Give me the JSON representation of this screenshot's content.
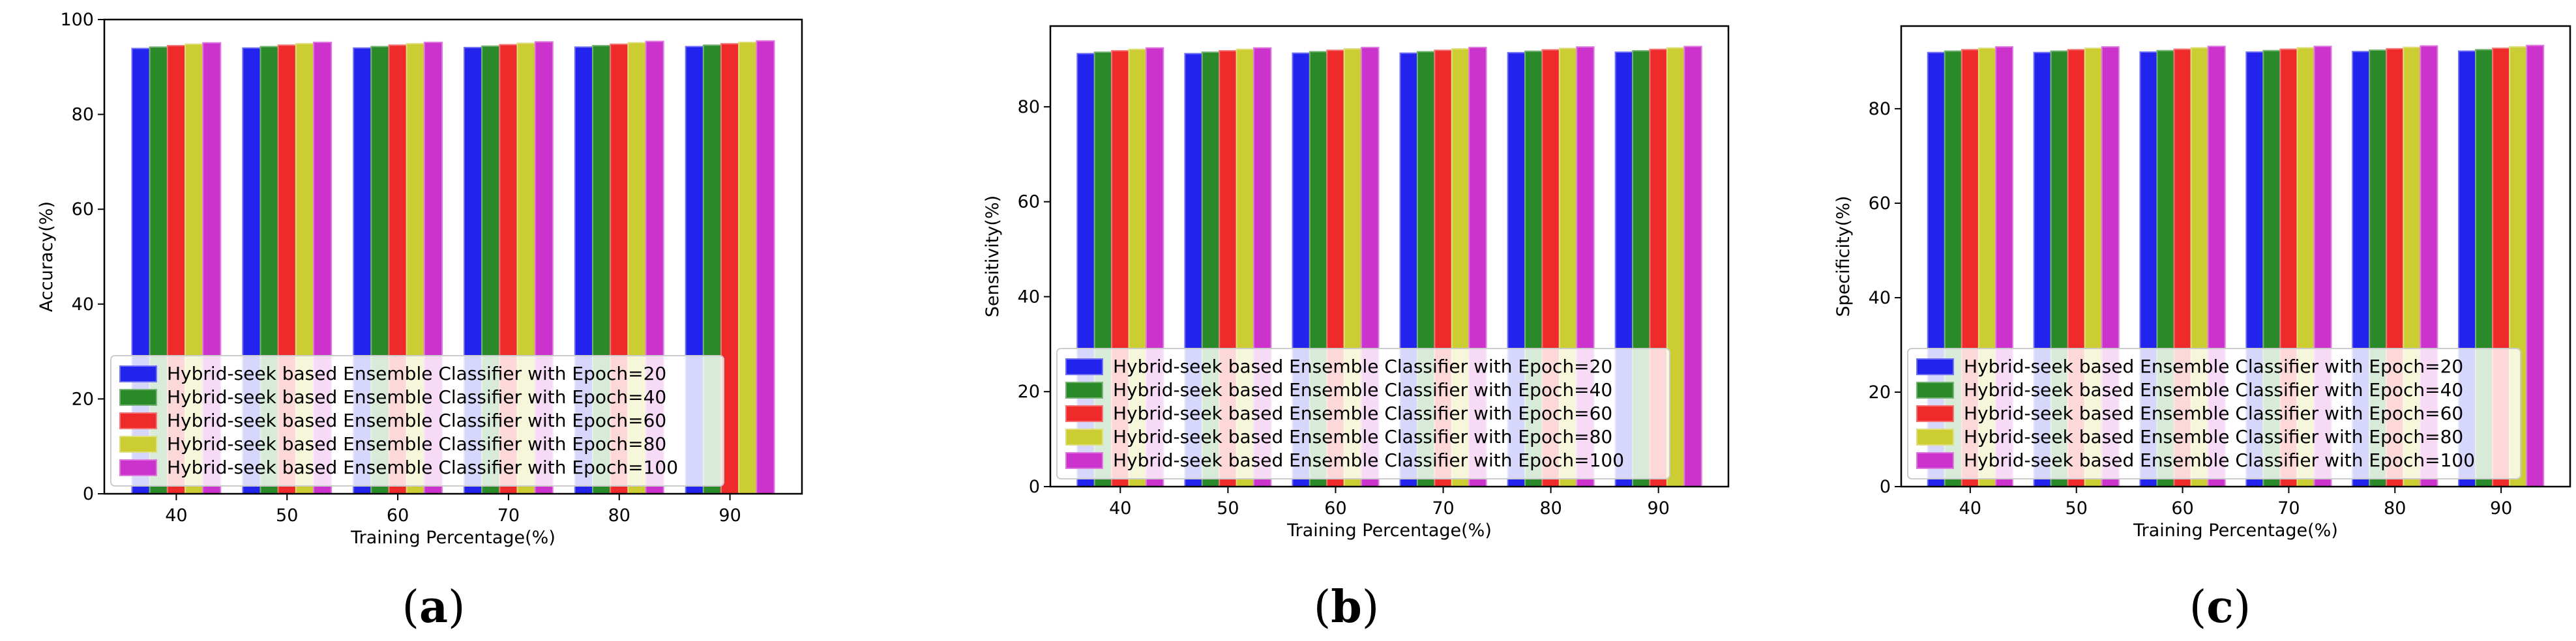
{
  "chart_data": [
    {
      "type": "bar",
      "panel_label": "(a)",
      "xlabel": "Training Percentage(%)",
      "ylabel": "Accuracy(%)",
      "ylim": [
        0,
        100
      ],
      "yticks": [
        0,
        20,
        40,
        60,
        80,
        100
      ],
      "categories": [
        "40",
        "50",
        "60",
        "70",
        "80",
        "90"
      ],
      "legend_position": "lower-left",
      "series": [
        {
          "name": "Hybrid-seek based Ensemble Classifier with Epoch=20",
          "color": "#2323ee",
          "values": [
            93.9,
            94.0,
            94.0,
            94.1,
            94.2,
            94.3
          ]
        },
        {
          "name": "Hybrid-seek based Ensemble Classifier with Epoch=40",
          "color": "#2a8a2a",
          "values": [
            94.2,
            94.3,
            94.3,
            94.4,
            94.5,
            94.6
          ]
        },
        {
          "name": "Hybrid-seek based Ensemble Classifier with Epoch=60",
          "color": "#ee2a2a",
          "values": [
            94.5,
            94.6,
            94.6,
            94.7,
            94.8,
            94.9
          ]
        },
        {
          "name": "Hybrid-seek based Ensemble Classifier with Epoch=80",
          "color": "#cccc33",
          "values": [
            94.8,
            94.9,
            94.9,
            95.0,
            95.1,
            95.2
          ]
        },
        {
          "name": "Hybrid-seek based Ensemble Classifier with Epoch=100",
          "color": "#cc33cc",
          "values": [
            95.1,
            95.2,
            95.2,
            95.3,
            95.4,
            95.5
          ]
        }
      ]
    },
    {
      "type": "bar",
      "panel_label": "(b)",
      "xlabel": "Training Percentage(%)",
      "ylabel": "Sensitivity(%)",
      "ylim": [
        0,
        97
      ],
      "yticks": [
        0,
        20,
        40,
        60,
        80
      ],
      "categories": [
        "40",
        "50",
        "60",
        "70",
        "80",
        "90"
      ],
      "legend_position": "lower-left",
      "series": [
        {
          "name": "Hybrid-seek based Ensemble Classifier with Epoch=20",
          "color": "#2323ee",
          "values": [
            91.2,
            91.2,
            91.3,
            91.3,
            91.4,
            91.5
          ]
        },
        {
          "name": "Hybrid-seek based Ensemble Classifier with Epoch=40",
          "color": "#2a8a2a",
          "values": [
            91.5,
            91.5,
            91.6,
            91.6,
            91.7,
            91.8
          ]
        },
        {
          "name": "Hybrid-seek based Ensemble Classifier with Epoch=60",
          "color": "#ee2a2a",
          "values": [
            91.8,
            91.8,
            91.9,
            91.9,
            92.0,
            92.1
          ]
        },
        {
          "name": "Hybrid-seek based Ensemble Classifier with Epoch=80",
          "color": "#cccc33",
          "values": [
            92.1,
            92.1,
            92.2,
            92.2,
            92.3,
            92.4
          ]
        },
        {
          "name": "Hybrid-seek based Ensemble Classifier with Epoch=100",
          "color": "#cc33cc",
          "values": [
            92.4,
            92.4,
            92.5,
            92.5,
            92.6,
            92.7
          ]
        }
      ]
    },
    {
      "type": "bar",
      "panel_label": "(c)",
      "xlabel": "Training Percentage(%)",
      "ylabel": "Specificity(%)",
      "ylim": [
        0,
        97.5
      ],
      "yticks": [
        0,
        20,
        40,
        60,
        80
      ],
      "categories": [
        "40",
        "50",
        "60",
        "70",
        "80",
        "90"
      ],
      "legend_position": "lower-left",
      "series": [
        {
          "name": "Hybrid-seek based Ensemble Classifier with Epoch=20",
          "color": "#2323ee",
          "values": [
            91.9,
            91.9,
            92.0,
            92.0,
            92.1,
            92.2
          ]
        },
        {
          "name": "Hybrid-seek based Ensemble Classifier with Epoch=40",
          "color": "#2a8a2a",
          "values": [
            92.2,
            92.2,
            92.3,
            92.3,
            92.4,
            92.5
          ]
        },
        {
          "name": "Hybrid-seek based Ensemble Classifier with Epoch=60",
          "color": "#ee2a2a",
          "values": [
            92.5,
            92.5,
            92.6,
            92.6,
            92.7,
            92.8
          ]
        },
        {
          "name": "Hybrid-seek based Ensemble Classifier with Epoch=80",
          "color": "#cccc33",
          "values": [
            92.8,
            92.8,
            92.9,
            92.9,
            93.0,
            93.1
          ]
        },
        {
          "name": "Hybrid-seek based Ensemble Classifier with Epoch=100",
          "color": "#cc33cc",
          "values": [
            93.1,
            93.1,
            93.2,
            93.2,
            93.3,
            93.4
          ]
        }
      ]
    }
  ]
}
